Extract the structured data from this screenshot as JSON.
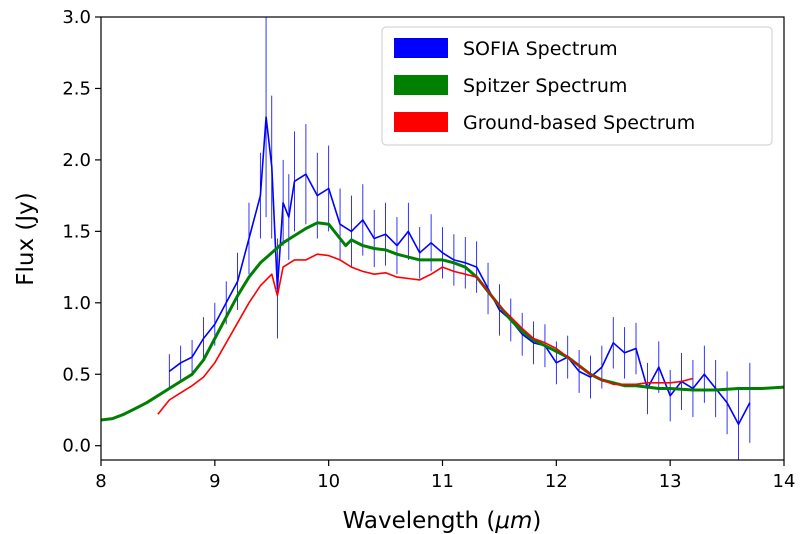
{
  "chart_data": {
    "type": "line",
    "title": "",
    "xlabel": "Wavelength (",
    "xlabel_unit": "μm",
    "xlabel_close": ")",
    "ylabel": "Flux (Jy)",
    "xlim": [
      8,
      14
    ],
    "ylim": [
      -0.1,
      3.0
    ],
    "xticks": [
      8,
      9,
      10,
      11,
      12,
      13,
      14
    ],
    "yticks": [
      0.0,
      0.5,
      1.0,
      1.5,
      2.0,
      2.5,
      3.0
    ],
    "xtick_labels": [
      "8",
      "9",
      "10",
      "11",
      "12",
      "13",
      "14"
    ],
    "ytick_labels": [
      "0.0",
      "0.5",
      "1.0",
      "1.5",
      "2.0",
      "2.5",
      "3.0"
    ],
    "grid": false,
    "legend_position": "top-right",
    "series": [
      {
        "name": "SOFIA Spectrum",
        "color": "#0000ff",
        "style": "noisy-line-with-errorbars",
        "x": [
          8.6,
          8.7,
          8.8,
          8.9,
          9.0,
          9.1,
          9.2,
          9.3,
          9.4,
          9.45,
          9.5,
          9.55,
          9.6,
          9.65,
          9.7,
          9.8,
          9.9,
          10.0,
          10.1,
          10.2,
          10.3,
          10.4,
          10.5,
          10.6,
          10.7,
          10.8,
          10.9,
          11.0,
          11.1,
          11.2,
          11.3,
          11.4,
          11.5,
          11.6,
          11.7,
          11.8,
          11.9,
          12.0,
          12.1,
          12.2,
          12.3,
          12.4,
          12.5,
          12.6,
          12.7,
          12.8,
          12.9,
          13.0,
          13.1,
          13.2,
          13.3,
          13.4,
          13.5,
          13.6,
          13.7
        ],
        "y": [
          0.52,
          0.58,
          0.62,
          0.75,
          0.85,
          1.0,
          1.15,
          1.45,
          1.75,
          2.3,
          1.95,
          1.1,
          1.7,
          1.6,
          1.85,
          1.9,
          1.75,
          1.8,
          1.55,
          1.5,
          1.58,
          1.45,
          1.48,
          1.4,
          1.5,
          1.35,
          1.42,
          1.35,
          1.3,
          1.28,
          1.25,
          1.1,
          0.95,
          0.88,
          0.78,
          0.72,
          0.7,
          0.58,
          0.62,
          0.52,
          0.48,
          0.55,
          0.72,
          0.65,
          0.68,
          0.4,
          0.55,
          0.35,
          0.45,
          0.4,
          0.5,
          0.4,
          0.3,
          0.15,
          0.3
        ],
        "err": [
          0.12,
          0.12,
          0.12,
          0.15,
          0.15,
          0.15,
          0.2,
          0.25,
          0.3,
          0.7,
          0.5,
          0.35,
          0.3,
          0.3,
          0.35,
          0.35,
          0.3,
          0.3,
          0.25,
          0.25,
          0.25,
          0.2,
          0.22,
          0.2,
          0.2,
          0.18,
          0.2,
          0.18,
          0.18,
          0.18,
          0.18,
          0.18,
          0.18,
          0.15,
          0.15,
          0.15,
          0.15,
          0.15,
          0.15,
          0.15,
          0.15,
          0.15,
          0.18,
          0.18,
          0.18,
          0.18,
          0.18,
          0.18,
          0.2,
          0.2,
          0.2,
          0.2,
          0.22,
          0.25,
          0.28
        ]
      },
      {
        "name": "Spitzer Spectrum",
        "color": "#008000",
        "style": "thick-line",
        "x": [
          8.0,
          8.1,
          8.2,
          8.3,
          8.4,
          8.5,
          8.6,
          8.7,
          8.8,
          8.9,
          9.0,
          9.1,
          9.2,
          9.3,
          9.4,
          9.5,
          9.6,
          9.7,
          9.8,
          9.9,
          10.0,
          10.1,
          10.15,
          10.2,
          10.3,
          10.4,
          10.5,
          10.6,
          10.7,
          10.8,
          10.9,
          11.0,
          11.1,
          11.2,
          11.3,
          11.4,
          11.5,
          11.6,
          11.7,
          11.8,
          11.9,
          12.0,
          12.1,
          12.2,
          12.3,
          12.4,
          12.5,
          12.6,
          12.7,
          12.8,
          12.9,
          13.0,
          13.2,
          13.4,
          13.6,
          13.8,
          14.0
        ],
        "y": [
          0.18,
          0.19,
          0.22,
          0.26,
          0.3,
          0.35,
          0.4,
          0.45,
          0.5,
          0.6,
          0.75,
          0.9,
          1.05,
          1.18,
          1.28,
          1.35,
          1.42,
          1.47,
          1.52,
          1.56,
          1.55,
          1.45,
          1.4,
          1.44,
          1.4,
          1.38,
          1.37,
          1.34,
          1.32,
          1.3,
          1.3,
          1.3,
          1.28,
          1.25,
          1.18,
          1.08,
          0.98,
          0.88,
          0.8,
          0.74,
          0.7,
          0.66,
          0.62,
          0.56,
          0.5,
          0.46,
          0.44,
          0.42,
          0.42,
          0.41,
          0.4,
          0.4,
          0.39,
          0.39,
          0.4,
          0.4,
          0.41
        ]
      },
      {
        "name": "Ground-based Spectrum",
        "color": "#ff0000",
        "style": "line",
        "x": [
          8.5,
          8.6,
          8.7,
          8.8,
          8.9,
          9.0,
          9.1,
          9.2,
          9.3,
          9.4,
          9.5,
          9.55,
          9.6,
          9.7,
          9.8,
          9.9,
          10.0,
          10.1,
          10.2,
          10.3,
          10.4,
          10.5,
          10.6,
          10.7,
          10.8,
          10.9,
          11.0,
          11.1,
          11.2,
          11.3,
          11.4,
          11.5,
          11.6,
          11.7,
          11.8,
          11.9,
          12.0,
          12.1,
          12.2,
          12.3,
          12.4,
          12.5,
          12.6,
          12.7,
          12.8,
          12.9,
          13.0,
          13.1,
          13.2
        ],
        "y": [
          0.22,
          0.32,
          0.37,
          0.42,
          0.48,
          0.58,
          0.72,
          0.86,
          1.0,
          1.12,
          1.2,
          1.05,
          1.25,
          1.3,
          1.3,
          1.34,
          1.33,
          1.3,
          1.25,
          1.22,
          1.2,
          1.21,
          1.18,
          1.17,
          1.16,
          1.2,
          1.25,
          1.22,
          1.2,
          1.18,
          1.08,
          0.98,
          0.9,
          0.82,
          0.75,
          0.72,
          0.68,
          0.62,
          0.56,
          0.5,
          0.46,
          0.43,
          0.43,
          0.43,
          0.44,
          0.44,
          0.44,
          0.45,
          0.47
        ]
      }
    ]
  }
}
